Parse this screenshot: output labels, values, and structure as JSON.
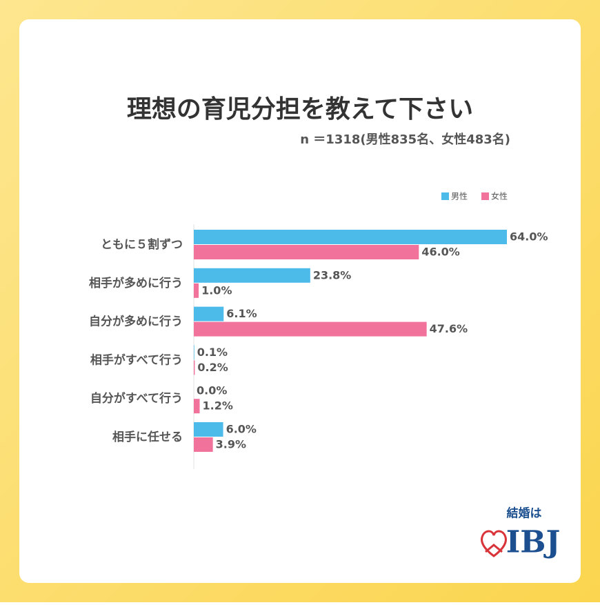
{
  "chart_data": {
    "type": "bar",
    "orientation": "horizontal",
    "title": "理想の育児分担を教えて下さい",
    "subtitle": "n ＝1318(男性835名、女性483名)",
    "categories": [
      "ともに５割ずつ",
      "相手が多めに行う",
      "自分が多めに行う",
      "相手がすべて行う",
      "自分がすべて行う",
      "相手に任せる"
    ],
    "series": [
      {
        "name": "男性",
        "color": "#4dbbea",
        "values": [
          64.0,
          23.8,
          6.1,
          0.1,
          0.0,
          6.0
        ],
        "value_labels": [
          "64.0%",
          "23.8%",
          "6.1%",
          "0.1%",
          "0.0%",
          "6.0%"
        ]
      },
      {
        "name": "女性",
        "color": "#f1739c",
        "values": [
          46.0,
          1.0,
          47.6,
          0.2,
          1.2,
          3.9
        ],
        "value_labels": [
          "46.0%",
          "1.0%",
          "47.6%",
          "0.2%",
          "1.2%",
          "3.9%"
        ]
      }
    ],
    "legend": "top-right"
  },
  "logo": {
    "tagline": "結婚は",
    "brand": "IBJ"
  }
}
